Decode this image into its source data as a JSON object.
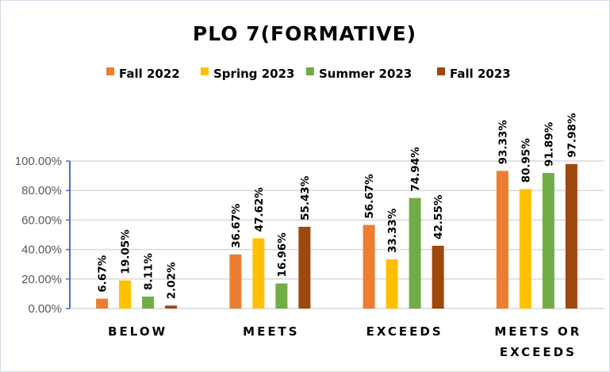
{
  "chart_data": {
    "type": "bar",
    "title": "PLO 7(FORMATIVE)",
    "xlabel": "",
    "ylabel": "",
    "ylim": [
      0,
      100
    ],
    "yticks": [
      "0.00%",
      "20.00%",
      "40.00%",
      "60.00%",
      "80.00%",
      "100.00%"
    ],
    "grid": true,
    "legend_position": "top",
    "categories": [
      "BELOW",
      "MEETS",
      "EXCEEDS",
      "MEETS OR EXCEEDS"
    ],
    "category_lines": [
      [
        "BELOW"
      ],
      [
        "MEETS"
      ],
      [
        "EXCEEDS"
      ],
      [
        "MEETS OR",
        "EXCEEDS"
      ]
    ],
    "series": [
      {
        "name": "Fall 2022",
        "color": "#ED7D31",
        "values": [
          6.67,
          36.67,
          56.67,
          93.33
        ],
        "labels": [
          "6.67%",
          "36.67%",
          "56.67%",
          "93.33%"
        ]
      },
      {
        "name": "Spring 2023",
        "color": "#FFC000",
        "values": [
          19.05,
          47.62,
          33.33,
          80.95
        ],
        "labels": [
          "19.05%",
          "47.62%",
          "33.33%",
          "80.95%"
        ]
      },
      {
        "name": "Summer 2023",
        "color": "#70AD47",
        "values": [
          8.11,
          16.96,
          74.94,
          91.89
        ],
        "labels": [
          "8.11%",
          "16.96%",
          "74.94%",
          "91.89%"
        ]
      },
      {
        "name": "Fall 2023",
        "color": "#9E480E",
        "values": [
          2.02,
          55.43,
          42.55,
          97.98
        ],
        "labels": [
          "2.02%",
          "55.43%",
          "42.55%",
          "97.98%"
        ]
      }
    ]
  }
}
